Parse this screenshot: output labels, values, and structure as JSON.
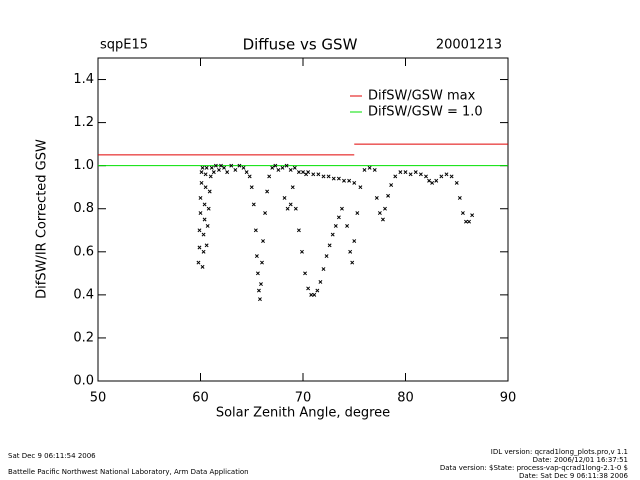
{
  "chart_data": {
    "type": "scatter",
    "title": "Diffuse vs GSW",
    "site": "sqpE15",
    "date": "20001213",
    "xlabel": "Solar Zenith Angle, degree",
    "ylabel": "DifSW/IR Corrected GSW",
    "color": "#000000",
    "xlim": [
      50,
      90
    ],
    "ylim": [
      0,
      1.5
    ],
    "xticks": [
      50,
      60,
      70,
      80,
      90
    ],
    "yticks": [
      {
        "value": 0,
        "label": "0.0"
      },
      {
        "value": 0.2,
        "label": "0.2"
      },
      {
        "value": 0.4,
        "label": "0.4"
      },
      {
        "value": 0.6,
        "label": "0.6"
      },
      {
        "value": 0.8,
        "label": "0.8"
      },
      {
        "value": 1.0,
        "label": "1.0"
      },
      {
        "value": 1.2,
        "label": "1.2"
      },
      {
        "value": 1.4,
        "label": "1.4"
      }
    ],
    "x": [
      59.8,
      59.9,
      59.9,
      60.0,
      60.0,
      60.1,
      60.1,
      60.2,
      60.2,
      60.3,
      60.3,
      60.4,
      60.4,
      60.5,
      60.5,
      60.6,
      60.6,
      60.7,
      60.8,
      60.9,
      61.0,
      61.1,
      61.3,
      61.5,
      61.8,
      62.0,
      62.3,
      62.6,
      63.0,
      63.4,
      63.8,
      64.2,
      64.5,
      64.8,
      65.0,
      65.2,
      65.4,
      65.5,
      65.6,
      65.7,
      65.8,
      65.9,
      66.0,
      66.1,
      66.3,
      66.5,
      66.7,
      67.0,
      67.3,
      67.6,
      68.0,
      68.4,
      68.8,
      69.2,
      69.6,
      70.0,
      70.3,
      70.5,
      71.0,
      71.5,
      72.0,
      72.5,
      73.0,
      73.5,
      74.0,
      74.5,
      75.0,
      69.0,
      69.3,
      69.6,
      69.9,
      70.2,
      70.5,
      70.8,
      71.1,
      71.4,
      71.7,
      72.0,
      72.3,
      72.6,
      72.9,
      73.2,
      73.5,
      73.8,
      68.2,
      68.5,
      68.8,
      74.3,
      74.6,
      74.8,
      75.0,
      75.3,
      75.6,
      76.0,
      76.5,
      77.0,
      77.2,
      77.5,
      77.8,
      78.0,
      78.3,
      78.6,
      79.0,
      79.5,
      80.0,
      80.5,
      81.0,
      81.5,
      82.0,
      82.3,
      82.6,
      83.0,
      83.5,
      84.0,
      84.5,
      85.0,
      85.3,
      85.6,
      85.9,
      86.2,
      86.5
    ],
    "values": [
      0.55,
      0.62,
      0.7,
      0.78,
      0.85,
      0.92,
      0.97,
      0.99,
      0.53,
      0.6,
      0.68,
      0.75,
      0.82,
      0.9,
      0.96,
      0.99,
      0.63,
      0.72,
      0.8,
      0.88,
      0.95,
      0.99,
      0.97,
      1.0,
      0.98,
      1.0,
      0.99,
      0.97,
      1.0,
      0.98,
      1.0,
      0.99,
      0.97,
      0.95,
      0.9,
      0.82,
      0.7,
      0.58,
      0.5,
      0.42,
      0.38,
      0.45,
      0.55,
      0.65,
      0.78,
      0.88,
      0.95,
      0.99,
      1.0,
      0.98,
      0.99,
      1.0,
      0.98,
      0.99,
      0.97,
      0.97,
      0.96,
      0.97,
      0.96,
      0.96,
      0.95,
      0.95,
      0.94,
      0.94,
      0.93,
      0.93,
      0.92,
      0.9,
      0.8,
      0.7,
      0.6,
      0.5,
      0.43,
      0.4,
      0.4,
      0.42,
      0.46,
      0.52,
      0.58,
      0.63,
      0.68,
      0.72,
      0.76,
      0.8,
      0.85,
      0.8,
      0.82,
      0.72,
      0.6,
      0.55,
      0.65,
      0.78,
      0.9,
      0.98,
      0.99,
      0.98,
      0.85,
      0.78,
      0.75,
      0.8,
      0.86,
      0.91,
      0.95,
      0.97,
      0.97,
      0.96,
      0.97,
      0.96,
      0.95,
      0.93,
      0.92,
      0.93,
      0.95,
      0.96,
      0.95,
      0.92,
      0.85,
      0.78,
      0.74,
      0.74,
      0.77
    ],
    "reference_lines": [
      {
        "name": "DifSW/GSW max",
        "color": "#e00000",
        "segments": [
          {
            "x": [
              50,
              75
            ],
            "y": 1.05
          },
          {
            "x": [
              75,
              90
            ],
            "y": 1.1
          }
        ]
      },
      {
        "name": "DifSW/GSW = 1.0",
        "color": "#00e000",
        "segments": [
          {
            "x": [
              50,
              90
            ],
            "y": 1.0
          }
        ]
      }
    ]
  },
  "footer": {
    "left": [
      "Sat Dec  9 06:11:54 2006",
      "Battelle Pacific Northwest National Laboratory, Arm Data Application"
    ],
    "right": [
      "IDL version: qcrad1long_plots.pro,v 1.1",
      "Date: 2006/12/01 16:37:51",
      "Data version: $State: process-vap-qcrad1long-2.1-0 $",
      "Date: Sat Dec  9 06:11:38 2006"
    ]
  }
}
